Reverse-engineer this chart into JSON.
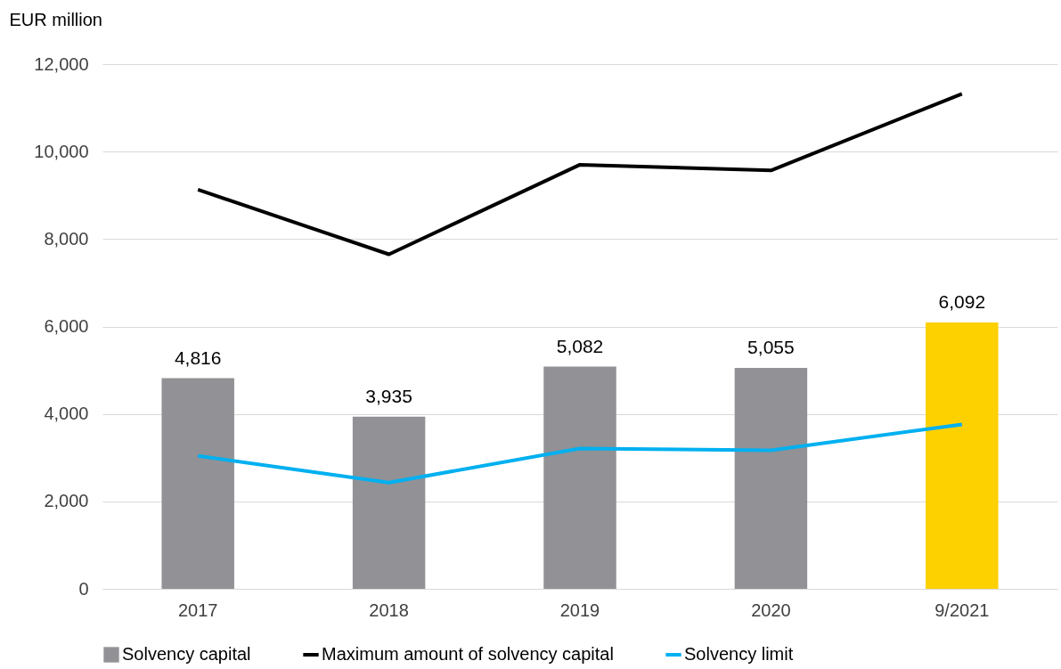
{
  "chart_data": {
    "type": "bar",
    "ylabel": "EUR million",
    "categories": [
      "2017",
      "2018",
      "2019",
      "2020",
      "9/2021"
    ],
    "series": [
      {
        "name": "Solvency capital",
        "color": "#929195",
        "colors": [
          "#929195",
          "#929195",
          "#929195",
          "#929195",
          "#fdd000"
        ],
        "values": [
          4816,
          3935,
          5082,
          5055,
          6092
        ],
        "value_labels": [
          "4,816",
          "3,935",
          "5,082",
          "5,055",
          "6,092"
        ]
      },
      {
        "name": "Maximum amount of solvency capital",
        "type": "line",
        "color": "#000000",
        "values": [
          9130,
          7650,
          9700,
          9570,
          11320
        ]
      },
      {
        "name": "Solvency limit",
        "type": "line",
        "color": "#00b0f0",
        "values": [
          3040,
          2430,
          3210,
          3170,
          3760
        ]
      }
    ],
    "ylim": [
      0,
      12000
    ],
    "yticks": [
      0,
      {
        "value": 2000,
        "label": "2,000"
      },
      {
        "value": 4000,
        "label": "4,000"
      },
      {
        "value": 6000,
        "label": "6,000"
      },
      {
        "value": 8000,
        "label": "8,000"
      },
      {
        "value": 10000,
        "label": "10,000"
      },
      {
        "value": 12000,
        "label": "12,000"
      }
    ],
    "grid": "y",
    "legend": "bottom",
    "marker": "none",
    "line_style": "solid"
  }
}
